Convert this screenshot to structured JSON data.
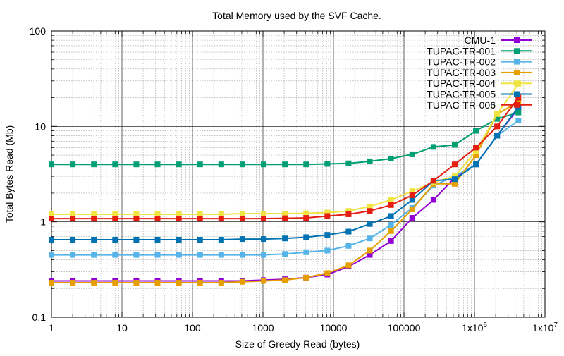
{
  "chart_data": {
    "type": "line",
    "title": "Total Memory used by the SVF Cache.",
    "xlabel": "Size of Greedy Read (bytes)",
    "ylabel": "Total Bytes Read (Mb)",
    "x_scale": "log",
    "y_scale": "log",
    "xlim": [
      1,
      10000000
    ],
    "ylim": [
      0.1,
      100
    ],
    "x_ticks": [
      "1",
      "10",
      "100",
      "1000",
      "10000",
      "100000",
      "1x10^6",
      "1x10^7"
    ],
    "y_ticks": [
      "0.1",
      "1",
      "10",
      "100"
    ],
    "grid": true,
    "legend_position": "top-right",
    "x": [
      1,
      2,
      4,
      8,
      16,
      32,
      64,
      128,
      256,
      512,
      1024,
      2048,
      4096,
      8192,
      16384,
      32768,
      65536,
      131072,
      262144,
      524288,
      1048576,
      2097152,
      4194304
    ],
    "series": [
      {
        "name": "CMU-1",
        "color": "#9400d3",
        "values": [
          0.24,
          0.24,
          0.24,
          0.24,
          0.24,
          0.24,
          0.24,
          0.24,
          0.24,
          0.24,
          0.245,
          0.25,
          0.26,
          0.28,
          0.34,
          0.45,
          0.63,
          1.1,
          1.7,
          2.9,
          4.0,
          8.0,
          15.5
        ]
      },
      {
        "name": "TUPAC-TR-001",
        "color": "#009e73",
        "values": [
          4.0,
          4.0,
          4.0,
          4.0,
          4.0,
          4.0,
          4.0,
          4.0,
          4.0,
          4.0,
          4.0,
          4.0,
          4.0,
          4.05,
          4.1,
          4.3,
          4.6,
          5.1,
          6.1,
          6.4,
          9.0,
          12.0,
          14.0
        ]
      },
      {
        "name": "TUPAC-TR-002",
        "color": "#56b4e9",
        "values": [
          0.45,
          0.45,
          0.45,
          0.45,
          0.45,
          0.45,
          0.45,
          0.45,
          0.45,
          0.45,
          0.45,
          0.46,
          0.48,
          0.5,
          0.56,
          0.67,
          0.93,
          1.4,
          2.4,
          3.0,
          4.0,
          8.0,
          11.5
        ]
      },
      {
        "name": "TUPAC-TR-003",
        "color": "#e69f00",
        "values": [
          0.23,
          0.23,
          0.23,
          0.23,
          0.23,
          0.23,
          0.23,
          0.23,
          0.23,
          0.235,
          0.24,
          0.245,
          0.26,
          0.29,
          0.35,
          0.5,
          0.8,
          1.35,
          2.5,
          2.5,
          5.0,
          13.5,
          18.0
        ]
      },
      {
        "name": "TUPAC-TR-004",
        "color": "#f0e442",
        "values": [
          1.2,
          1.2,
          1.2,
          1.2,
          1.2,
          1.2,
          1.2,
          1.2,
          1.2,
          1.22,
          1.22,
          1.22,
          1.23,
          1.25,
          1.3,
          1.45,
          1.7,
          2.1,
          2.6,
          3.0,
          5.5,
          13.5,
          28.0
        ]
      },
      {
        "name": "TUPAC-TR-005",
        "color": "#0072b2",
        "values": [
          0.65,
          0.65,
          0.65,
          0.65,
          0.65,
          0.65,
          0.65,
          0.65,
          0.65,
          0.66,
          0.66,
          0.67,
          0.69,
          0.73,
          0.79,
          0.95,
          1.15,
          1.7,
          2.7,
          2.8,
          4.0,
          8.0,
          16.0
        ]
      },
      {
        "name": "TUPAC-TR-006",
        "color": "#e51e10",
        "values": [
          1.08,
          1.08,
          1.08,
          1.08,
          1.08,
          1.08,
          1.08,
          1.08,
          1.08,
          1.08,
          1.08,
          1.09,
          1.1,
          1.15,
          1.2,
          1.3,
          1.5,
          1.9,
          2.7,
          4.0,
          6.0,
          10.0,
          20.0
        ]
      }
    ]
  }
}
